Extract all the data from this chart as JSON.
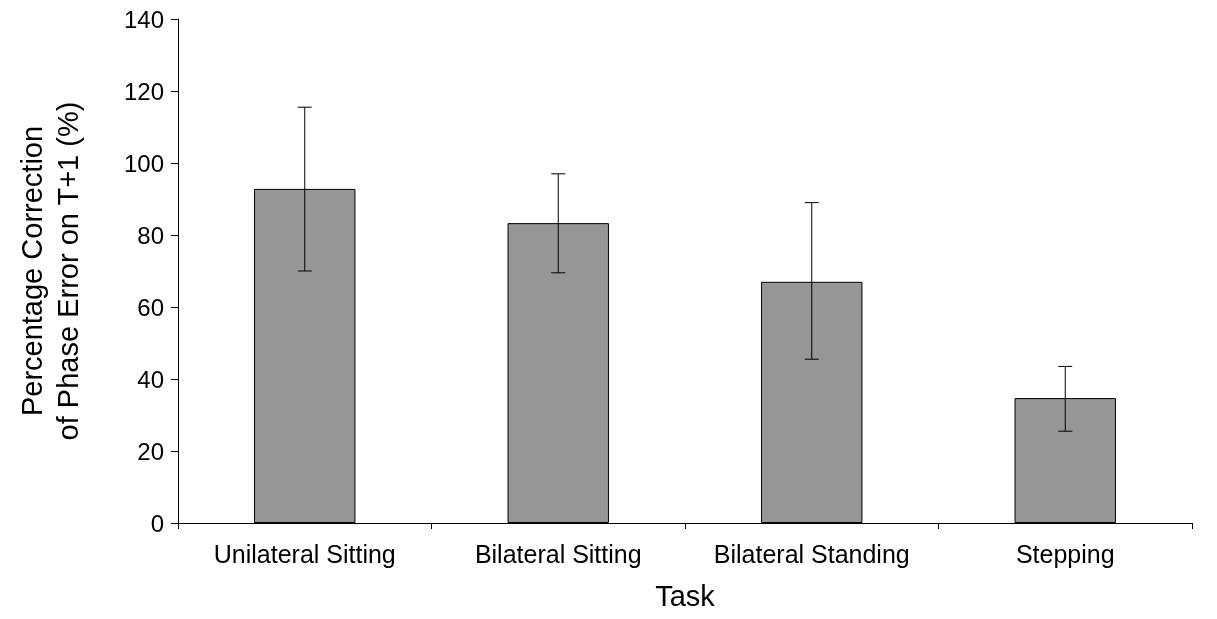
{
  "chart_data": {
    "type": "bar",
    "xlabel": "Task",
    "ylabel": "Percentage Correction\nof Phase Error on T+1 (%)",
    "categories": [
      "Unilateral Sitting",
      "Bilateral Sitting",
      "Bilateral Standing",
      "Stepping"
    ],
    "values": [
      92.8,
      83.3,
      67,
      34.7
    ],
    "color": "#969696",
    "errors": [
      [
        70,
        115.5
      ],
      [
        69.5,
        97
      ],
      [
        45.5,
        89
      ],
      [
        25.5,
        43.5
      ]
    ],
    "ylim": [
      0,
      140
    ],
    "yticks": [
      0,
      20,
      40,
      60,
      80,
      100,
      120,
      140
    ],
    "grid": false
  }
}
